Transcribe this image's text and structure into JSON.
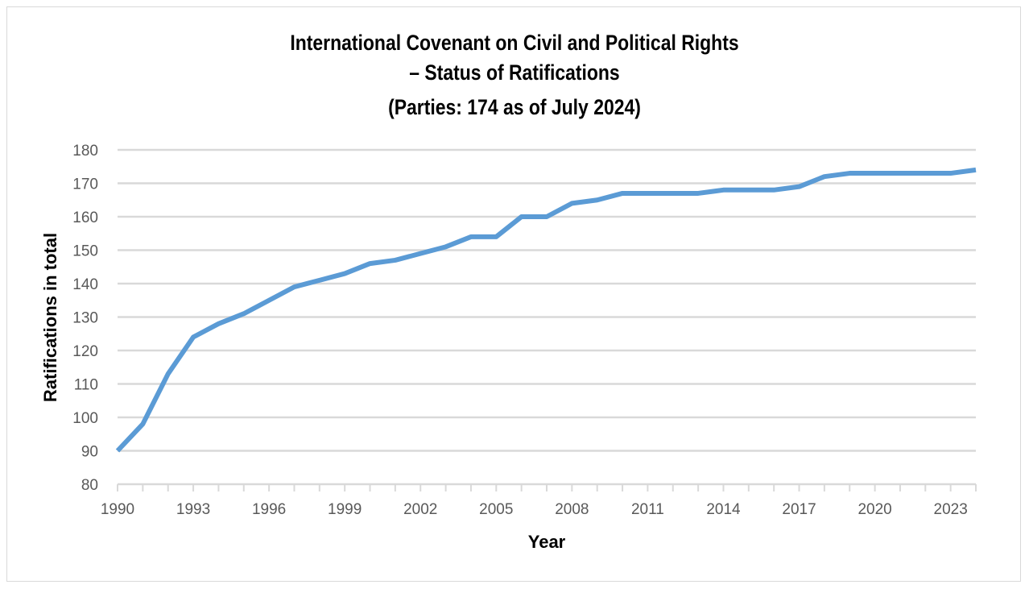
{
  "chart_data": {
    "type": "line",
    "title": [
      "International Covenant on Civil and Political Rights",
      "– Status of Ratifications",
      "(Parties: 174 as of July 2024)"
    ],
    "xlabel": "Year",
    "ylabel": "Ratifications in total",
    "x": [
      1990,
      1991,
      1992,
      1993,
      1994,
      1995,
      1996,
      1997,
      1998,
      1999,
      2000,
      2001,
      2002,
      2003,
      2004,
      2005,
      2006,
      2007,
      2008,
      2009,
      2010,
      2011,
      2012,
      2013,
      2014,
      2015,
      2016,
      2017,
      2018,
      2019,
      2020,
      2021,
      2022,
      2023,
      2024
    ],
    "values": [
      90,
      98,
      113,
      124,
      128,
      131,
      135,
      139,
      141,
      143,
      146,
      147,
      149,
      151,
      154,
      154,
      160,
      160,
      164,
      165,
      167,
      167,
      167,
      167,
      168,
      168,
      168,
      169,
      172,
      173,
      173,
      173,
      173,
      173,
      174
    ],
    "xticks": [
      "1990",
      "1993",
      "1996",
      "1999",
      "2002",
      "2005",
      "2008",
      "2011",
      "2014",
      "2017",
      "2020",
      "2023"
    ],
    "yticks": [
      "80",
      "90",
      "100",
      "110",
      "120",
      "130",
      "140",
      "150",
      "160",
      "170",
      "180"
    ],
    "xlim": [
      1990,
      2024
    ],
    "ylim": [
      80,
      180
    ],
    "grid": true,
    "line_color": "#5b9bd5",
    "grid_color": "#d9d9d9"
  }
}
